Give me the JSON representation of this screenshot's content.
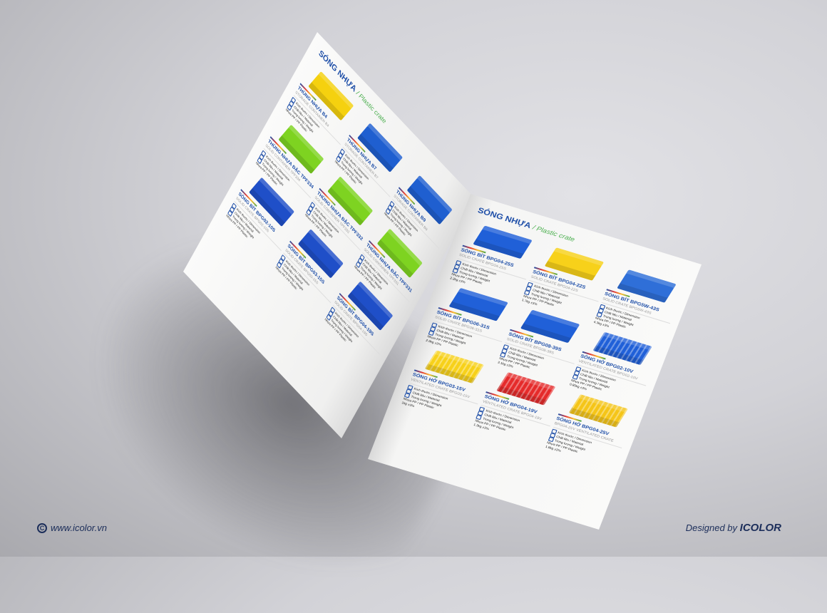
{
  "header": {
    "title": "SÓNG NHỰA",
    "subtitle": "Plastic crate"
  },
  "spec_labels": {
    "dimension": "Kích thước / Dimension",
    "material": "Chất liệu / Material",
    "weight": "Trọng lượng / Weight",
    "material_value": "Nhựa PP / PP Plastic"
  },
  "left_page": {
    "items": [
      {
        "name": "THÙNG NHỰA B4",
        "en": "STORAGE CONTAINER B4",
        "color": "#f5d10f",
        "vented": false
      },
      {
        "name": "THÙNG NHỰA B7",
        "en": "STORAGE CONTAINER B7",
        "color": "#1f5fd0",
        "vented": false
      },
      {
        "name": "THÙNG NHỰA B9",
        "en": "STORAGE CONTAINER B9",
        "color": "#1f5fd0",
        "vented": false
      },
      {
        "name": "THÙNG NHỰA ĐẶC TPF334",
        "en": "SOLID CONTAINER TPF334",
        "color": "#7ed321",
        "vented": false
      },
      {
        "name": "THÙNG NHỰA ĐẶC TPF332",
        "en": "SOLID CONTAINER TPF332",
        "color": "#7ed321",
        "vented": false
      },
      {
        "name": "THÙNG NHỰA ĐẶC TPF331",
        "en": "SOLID CONTAINER TPF331",
        "color": "#7ed321",
        "vented": false
      },
      {
        "name": "SÓNG BÍT BPG02-10S",
        "en": "SOLID CRATE BPG02-10S",
        "color": "#1f4fc8",
        "vented": false
      },
      {
        "name": "SÓNG BÍT BPG03-15S",
        "en": "SOLID CRATE BPG03-15S",
        "color": "#1f4fc8",
        "vented": false
      },
      {
        "name": "SÓNG BÍT BPG04-19S",
        "en": "SOLID CRATE BPG04-19S",
        "color": "#1f4fc8",
        "vented": false
      }
    ]
  },
  "right_page": {
    "items": [
      {
        "name": "SÓNG BÍT BPG04-25S",
        "en": "SOLID CRATE BPG04-25S",
        "color": "#2060d8",
        "vented": false,
        "weight": "2.2kg ±3%"
      },
      {
        "name": "SÓNG BÍT BPG04-22S",
        "en": "SOLID CRATE BPG04-22S",
        "color": "#f7d11a",
        "vented": false,
        "weight": "1.7kg ±3%"
      },
      {
        "name": "SÓNG BÍT BPG5W-43S",
        "en": "SOLID CRATE BPG5W-43S",
        "color": "#2f6fd8",
        "vented": false,
        "weight": "4.3kg ±3%"
      },
      {
        "name": "SÓNG BÍT BPG06-31S",
        "en": "SOLID CRATE BPG06-31S",
        "color": "#2060d8",
        "vented": false,
        "weight": "2.9kg ±3%"
      },
      {
        "name": "SÓNG BÍT BPG08-39S",
        "en": "SOLID CRATE BPG08-39S",
        "color": "#2060d8",
        "vented": false,
        "weight": "3.1kg ±3%"
      },
      {
        "name": "SÓNG HỞ BPG02-10V",
        "en": "VENTILATED CRATE BPG02-10V",
        "color": "#2060d8",
        "vented": true,
        "weight": "0.85kg ±3%"
      },
      {
        "name": "SÓNG HỞ BPG03-15V",
        "en": "VENTILATED CRATE BPG03-15V",
        "color": "#f7d11a",
        "vented": true,
        "weight": "1kg ±3%"
      },
      {
        "name": "SÓNG HỞ BPG04-19V",
        "en": "VENTILATED CRATE BPG04-19V",
        "color": "#e52b2b",
        "vented": true,
        "weight": "1.3kg ±3%"
      },
      {
        "name": "SÓNG HỞ BPG04-25V",
        "en": "BPG04-25V VENTILATED CRATE",
        "color": "#f5c518",
        "vented": true,
        "weight": "1.8kg ±3%"
      }
    ]
  },
  "footer": {
    "copyright_icon": "copyright-icon",
    "copyright_symbol": "C",
    "website": "www.icolor.vn",
    "designed_by": "Designed by",
    "brand": "ICOLOR"
  }
}
